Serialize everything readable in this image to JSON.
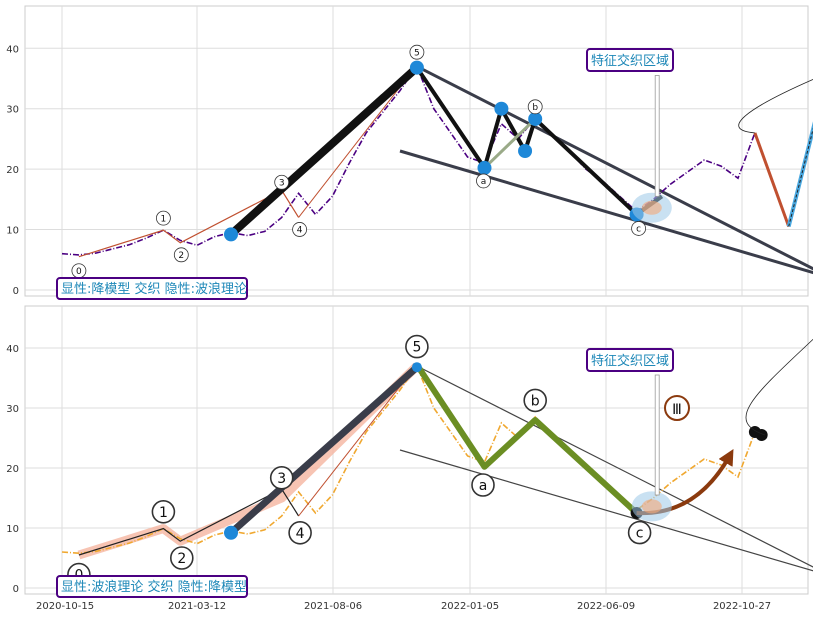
{
  "chart_data": [
    {
      "type": "line",
      "panel": "top",
      "ylim": [
        -1,
        47
      ],
      "yticks": [
        0,
        10,
        20,
        30,
        40
      ],
      "xticks": [
        "2020-10-15",
        "2021-03-12",
        "2021-08-06",
        "2022-01-05",
        "2022-06-09",
        "2022-10-27"
      ],
      "grid": true,
      "label_box": "显性:降模型 交织 隐性:波浪理论",
      "region_label": "特征交织区域",
      "price_color": "#4b0082",
      "price_series": [
        [
          0,
          6.0
        ],
        [
          1,
          5.8
        ],
        [
          2,
          6.1
        ],
        [
          3,
          6.8
        ],
        [
          4,
          7.5
        ],
        [
          5,
          8.6
        ],
        [
          6,
          9.9
        ],
        [
          7,
          8.2
        ],
        [
          8,
          7.4
        ],
        [
          9,
          8.8
        ],
        [
          10,
          9.5
        ],
        [
          11,
          9.0
        ],
        [
          12,
          9.7
        ],
        [
          13,
          12.0
        ],
        [
          14,
          16.0
        ],
        [
          15,
          12.5
        ],
        [
          16,
          15.5
        ],
        [
          17,
          21.0
        ],
        [
          18,
          26.0
        ],
        [
          19,
          29.5
        ],
        [
          20,
          33.0
        ],
        [
          21,
          37.0
        ],
        [
          22,
          30.0
        ],
        [
          23,
          26.0
        ],
        [
          24,
          22.0
        ],
        [
          25,
          21.0
        ],
        [
          26,
          27.5
        ],
        [
          27,
          25.0
        ],
        [
          28,
          28.5
        ],
        [
          29,
          25.5
        ],
        [
          30,
          23.0
        ],
        [
          31,
          20.0
        ],
        [
          32,
          18.0
        ],
        [
          33,
          15.5
        ],
        [
          34,
          13.0
        ],
        [
          35,
          15.0
        ],
        [
          36,
          17.5
        ],
        [
          37,
          19.5
        ],
        [
          38,
          21.5
        ],
        [
          39,
          20.5
        ],
        [
          40,
          18.5
        ],
        [
          41,
          26.0
        ]
      ],
      "wave_points": [
        {
          "label": "0",
          "x": 1,
          "y": 5.5
        },
        {
          "label": "1",
          "x": 6,
          "y": 9.9
        },
        {
          "label": "2",
          "x": 7,
          "y": 7.8
        },
        {
          "label": "3",
          "x": 13,
          "y": 16.5
        },
        {
          "label": "4",
          "x": 14,
          "y": 12.0
        },
        {
          "label": "5",
          "x": 21,
          "y": 37.2
        },
        {
          "label": "a",
          "x": 25,
          "y": 20.2
        },
        {
          "label": "b",
          "x": 28,
          "y": 28.0
        },
        {
          "label": "c",
          "x": 34,
          "y": 12.5
        }
      ],
      "zigzag_points": [
        {
          "x": 10,
          "y": 9.2
        },
        {
          "x": 21,
          "y": 36.8
        },
        {
          "x": 25,
          "y": 20.2
        },
        {
          "x": 26,
          "y": 30.0
        },
        {
          "x": 27.4,
          "y": 23.0
        },
        {
          "x": 28,
          "y": 28.3
        },
        {
          "x": 34,
          "y": 12.5
        },
        {
          "x": 35.5,
          "y": 15.5
        }
      ],
      "channel_lines": [
        [
          {
            "x": 21,
            "y": 37
          },
          {
            "x": 45.5,
            "y": 2
          }
        ],
        [
          {
            "x": 20,
            "y": 23
          },
          {
            "x": 45.5,
            "y": 2
          }
        ]
      ],
      "projection": [
        {
          "x": 41,
          "y": 26
        },
        {
          "x": 43,
          "y": 10.5
        },
        {
          "x": 46,
          "y": 44
        }
      ]
    },
    {
      "type": "line",
      "panel": "bottom",
      "ylim": [
        -1,
        47
      ],
      "yticks": [
        0,
        10,
        20,
        30,
        40
      ],
      "xticks": [
        "2020-10-15",
        "2021-03-12",
        "2021-08-06",
        "2022-01-05",
        "2022-06-09",
        "2022-10-27"
      ],
      "grid": true,
      "label_box": "显性:波浪理论 交织 隐性:降模型",
      "region_label": "特征交织区域",
      "price_color": "#f0a830",
      "roman_label": "Ⅲ",
      "price_series": [
        [
          0,
          6.0
        ],
        [
          1,
          5.8
        ],
        [
          2,
          6.1
        ],
        [
          3,
          6.8
        ],
        [
          4,
          7.5
        ],
        [
          5,
          8.6
        ],
        [
          6,
          9.9
        ],
        [
          7,
          8.2
        ],
        [
          8,
          7.4
        ],
        [
          9,
          8.8
        ],
        [
          10,
          9.5
        ],
        [
          11,
          9.0
        ],
        [
          12,
          9.7
        ],
        [
          13,
          12.0
        ],
        [
          14,
          16.0
        ],
        [
          15,
          12.5
        ],
        [
          16,
          15.5
        ],
        [
          17,
          21.0
        ],
        [
          18,
          26.0
        ],
        [
          19,
          29.5
        ],
        [
          20,
          33.0
        ],
        [
          21,
          37.0
        ],
        [
          22,
          30.0
        ],
        [
          23,
          26.0
        ],
        [
          24,
          22.0
        ],
        [
          25,
          21.0
        ],
        [
          26,
          27.5
        ],
        [
          27,
          25.0
        ],
        [
          28,
          28.5
        ],
        [
          29,
          25.5
        ],
        [
          30,
          23.0
        ],
        [
          31,
          20.0
        ],
        [
          32,
          18.0
        ],
        [
          33,
          15.5
        ],
        [
          34,
          13.0
        ],
        [
          35,
          15.0
        ],
        [
          36,
          17.5
        ],
        [
          37,
          19.5
        ],
        [
          38,
          21.5
        ],
        [
          39,
          20.5
        ],
        [
          40,
          18.5
        ],
        [
          41,
          26.0
        ]
      ],
      "wave_points": [
        {
          "label": "0",
          "x": 1,
          "y": 5.5
        },
        {
          "label": "1",
          "x": 6,
          "y": 9.9
        },
        {
          "label": "2",
          "x": 7,
          "y": 7.8
        },
        {
          "label": "3",
          "x": 13,
          "y": 16.5
        },
        {
          "label": "4",
          "x": 14,
          "y": 12.0
        },
        {
          "label": "5",
          "x": 21,
          "y": 37.2
        },
        {
          "label": "a",
          "x": 25,
          "y": 20.2
        },
        {
          "label": "b",
          "x": 28,
          "y": 28.0
        },
        {
          "label": "c",
          "x": 34,
          "y": 12.5
        }
      ],
      "wave_path": [
        {
          "x": 21,
          "y": 37.2
        },
        {
          "x": 25,
          "y": 20.2
        },
        {
          "x": 28,
          "y": 28.0
        },
        {
          "x": 34,
          "y": 12.5
        }
      ],
      "channel_lines": [
        [
          {
            "x": 21,
            "y": 37
          },
          {
            "x": 45.5,
            "y": 2
          }
        ],
        [
          {
            "x": 20,
            "y": 23
          },
          {
            "x": 45.5,
            "y": 2
          }
        ]
      ],
      "arrow": [
        {
          "x": 34,
          "y": 12.5
        },
        {
          "x": 39.5,
          "y": 22
        }
      ]
    }
  ]
}
